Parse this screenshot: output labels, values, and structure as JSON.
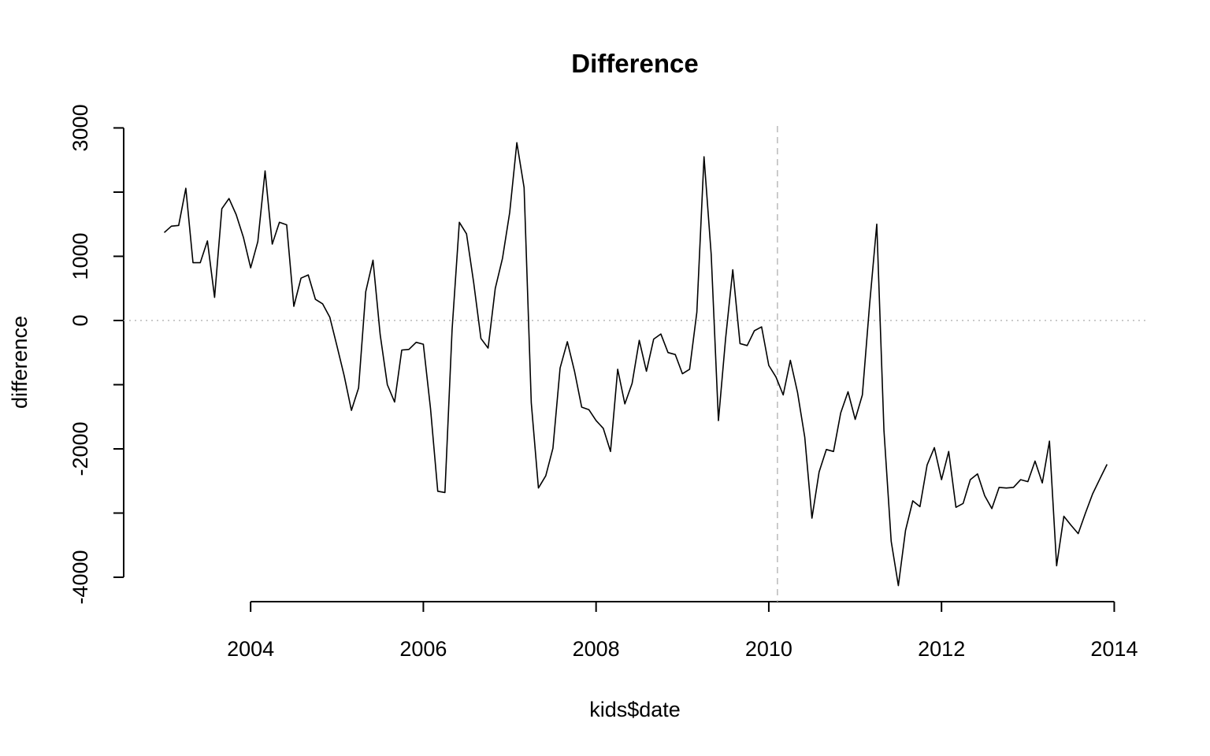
{
  "chart_data": {
    "type": "line",
    "title": "Difference",
    "xlabel": "kids$date",
    "ylabel": "difference",
    "x_ticks": [
      2004,
      2006,
      2008,
      2010,
      2012,
      2014
    ],
    "y_ticks": [
      -4000,
      -3000,
      -2000,
      -1000,
      0,
      1000,
      2000,
      3000
    ],
    "y_tick_labels": [
      "-4000",
      "",
      "-2000",
      "",
      "0",
      "1000",
      "",
      "3000"
    ],
    "xlim": [
      2002.53,
      2014.37
    ],
    "ylim": [
      -4380,
      3030
    ],
    "reference_lines": {
      "horizontal_y": 0,
      "vertical_x": 2010.1
    },
    "line_color": "#000000",
    "reference_color": "#bebebe",
    "grid": false,
    "series": [
      {
        "x": [
          2003.0,
          2003.083,
          2003.167,
          2003.25,
          2003.333,
          2003.417,
          2003.5,
          2003.583,
          2003.667,
          2003.75,
          2003.833,
          2003.917,
          2004.0,
          2004.083,
          2004.167,
          2004.25,
          2004.333,
          2004.417,
          2004.5,
          2004.583,
          2004.667,
          2004.75,
          2004.833,
          2004.917,
          2005.0,
          2005.083,
          2005.167,
          2005.25,
          2005.333,
          2005.417,
          2005.5,
          2005.583,
          2005.667,
          2005.75,
          2005.833,
          2005.917,
          2006.0,
          2006.083,
          2006.167,
          2006.25,
          2006.333,
          2006.417,
          2006.5,
          2006.583,
          2006.667,
          2006.75,
          2006.833,
          2006.917,
          2007.0,
          2007.083,
          2007.167,
          2007.25,
          2007.333,
          2007.417,
          2007.5,
          2007.583,
          2007.667,
          2007.75,
          2007.833,
          2007.917,
          2008.0,
          2008.083,
          2008.167,
          2008.25,
          2008.333,
          2008.417,
          2008.5,
          2008.583,
          2008.667,
          2008.75,
          2008.833,
          2008.917,
          2009.0,
          2009.083,
          2009.167,
          2009.25,
          2009.333,
          2009.417,
          2009.5,
          2009.583,
          2009.667,
          2009.75,
          2009.833,
          2009.917,
          2010.0,
          2010.083,
          2010.167,
          2010.25,
          2010.333,
          2010.417,
          2010.5,
          2010.583,
          2010.667,
          2010.75,
          2010.833,
          2010.917,
          2011.0,
          2011.083,
          2011.167,
          2011.25,
          2011.333,
          2011.417,
          2011.5,
          2011.583,
          2011.667,
          2011.75,
          2011.833,
          2011.917,
          2012.0,
          2012.083,
          2012.167,
          2012.25,
          2012.333,
          2012.417,
          2012.5,
          2012.583,
          2012.667,
          2012.75,
          2012.833,
          2012.917,
          2013.0,
          2013.083,
          2013.167,
          2013.25,
          2013.333,
          2013.417,
          2013.5,
          2013.583,
          2013.667,
          2013.75,
          2013.833,
          2013.917
        ],
        "values": [
          1370,
          1470,
          1480,
          2060,
          900,
          900,
          1240,
          360,
          1740,
          1900,
          1650,
          1290,
          820,
          1230,
          2330,
          1190,
          1530,
          1490,
          220,
          660,
          710,
          330,
          260,
          50,
          -400,
          -860,
          -1400,
          -1050,
          450,
          940,
          -220,
          -1000,
          -1270,
          -460,
          -450,
          -340,
          -370,
          -1370,
          -2660,
          -2680,
          -140,
          1530,
          1350,
          590,
          -280,
          -430,
          500,
          970,
          1680,
          2770,
          2070,
          -1280,
          -2610,
          -2420,
          -1990,
          -740,
          -330,
          -790,
          -1350,
          -1390,
          -1560,
          -1680,
          -2040,
          -760,
          -1300,
          -980,
          -310,
          -790,
          -290,
          -210,
          -500,
          -530,
          -830,
          -760,
          130,
          2550,
          1030,
          -1560,
          -280,
          790,
          -360,
          -390,
          -160,
          -100,
          -700,
          -880,
          -1160,
          -620,
          -1120,
          -1820,
          -3080,
          -2360,
          -2010,
          -2040,
          -1440,
          -1110,
          -1540,
          -1160,
          250,
          1500,
          -1710,
          -3440,
          -4130,
          -3270,
          -2810,
          -2900,
          -2250,
          -1980,
          -2480,
          -2040,
          -2910,
          -2850,
          -2480,
          -2390,
          -2730,
          -2930,
          -2600,
          -2610,
          -2600,
          -2480,
          -2510,
          -2190,
          -2530,
          -1880,
          -3820,
          -3050,
          -3190,
          -3320,
          -3000,
          -2700,
          -2470,
          -2240
        ]
      }
    ]
  }
}
